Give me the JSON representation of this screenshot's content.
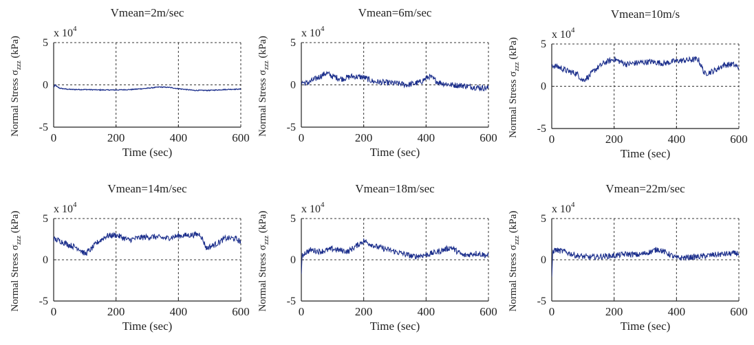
{
  "colors": {
    "series": "#1c2f8c",
    "axis": "#222222",
    "grid": "#333333"
  },
  "chart_data": [
    {
      "type": "line",
      "title": "Vmean=2m/sec",
      "xlabel": "Time (sec)",
      "ylabel_main": "Normal Stress σ",
      "ylabel_sub": "zzz",
      "ylabel_unit": " (kPa)",
      "scale_label": "x 10",
      "scale_exp": "4",
      "xlim": [
        0,
        600
      ],
      "ylim": [
        -5,
        5
      ],
      "xticks": [
        0,
        200,
        400,
        600
      ],
      "yticks": [
        -5,
        0,
        5
      ],
      "grid": true,
      "series": [
        {
          "x": [
            0,
            5,
            10,
            20,
            40,
            60,
            100,
            150,
            200,
            250,
            300,
            340,
            370,
            400,
            450,
            500,
            550,
            600
          ],
          "y": [
            -0.3,
            0.0,
            -0.2,
            -0.4,
            -0.5,
            -0.55,
            -0.55,
            -0.6,
            -0.6,
            -0.55,
            -0.4,
            -0.25,
            -0.3,
            -0.45,
            -0.65,
            -0.65,
            -0.55,
            -0.5
          ]
        }
      ]
    },
    {
      "type": "line",
      "title": "Vmean=6m/sec",
      "xlabel": "Time (sec)",
      "ylabel_main": "Normal Stress σ",
      "ylabel_sub": "zzz",
      "ylabel_unit": " (kPa)",
      "scale_label": "x 10",
      "scale_exp": "4",
      "xlim": [
        0,
        600
      ],
      "ylim": [
        -5,
        5
      ],
      "xticks": [
        0,
        200,
        400,
        600
      ],
      "yticks": [
        -5,
        0,
        5
      ],
      "grid": true,
      "series": [
        {
          "x": [
            0,
            20,
            50,
            80,
            100,
            130,
            160,
            200,
            230,
            260,
            300,
            340,
            380,
            410,
            440,
            480,
            520,
            560,
            600
          ],
          "y": [
            0.3,
            0.2,
            0.8,
            1.4,
            1.0,
            0.7,
            1.0,
            0.9,
            0.4,
            0.3,
            0.2,
            0.0,
            0.3,
            1.0,
            0.3,
            0.0,
            -0.1,
            -0.3,
            -0.4
          ]
        }
      ]
    },
    {
      "type": "line",
      "title": "Vmean=10m/s",
      "xlabel": "Time (sec)",
      "ylabel_main": "Normal Stress σ",
      "ylabel_sub": "zzz",
      "ylabel_unit": " (kPa)",
      "scale_label": "x 10",
      "scale_exp": "4",
      "xlim": [
        0,
        600
      ],
      "ylim": [
        -5,
        5
      ],
      "xticks": [
        0,
        200,
        400,
        600
      ],
      "yticks": [
        -5,
        0,
        5
      ],
      "grid": true,
      "series": [
        {
          "x": [
            0,
            20,
            50,
            80,
            100,
            120,
            140,
            170,
            200,
            240,
            280,
            320,
            360,
            400,
            440,
            470,
            490,
            520,
            550,
            580,
            600
          ],
          "y": [
            2.5,
            2.3,
            1.8,
            1.5,
            0.7,
            1.2,
            2.0,
            2.8,
            3.2,
            2.6,
            2.8,
            2.9,
            2.7,
            3.0,
            3.1,
            3.2,
            1.5,
            1.8,
            2.5,
            2.6,
            2.2
          ]
        }
      ]
    },
    {
      "type": "line",
      "title": "Vmean=14m/sec",
      "xlabel": "Time (sec)",
      "ylabel_main": "Normal Stress σ",
      "ylabel_sub": "zzz",
      "ylabel_unit": " (kPa)",
      "scale_label": "x 10",
      "scale_exp": "4",
      "xlim": [
        0,
        600
      ],
      "ylim": [
        -5,
        5
      ],
      "xticks": [
        0,
        200,
        400,
        600
      ],
      "yticks": [
        -5,
        0,
        5
      ],
      "grid": true,
      "series": [
        {
          "x": [
            0,
            20,
            50,
            80,
            100,
            120,
            140,
            170,
            200,
            240,
            280,
            320,
            360,
            400,
            440,
            470,
            490,
            520,
            550,
            580,
            600
          ],
          "y": [
            2.5,
            2.3,
            1.8,
            1.4,
            0.7,
            1.3,
            2.1,
            2.9,
            3.0,
            2.4,
            2.7,
            2.8,
            2.6,
            2.9,
            3.0,
            3.1,
            1.4,
            1.9,
            2.6,
            2.6,
            2.2
          ]
        }
      ]
    },
    {
      "type": "line",
      "title": "Vmean=18m/sec",
      "xlabel": "Time (sec)",
      "ylabel_main": "Normal Stress σ",
      "ylabel_sub": "zzz",
      "ylabel_unit": " (kPa)",
      "scale_label": "x 10",
      "scale_exp": "4",
      "xlim": [
        0,
        600
      ],
      "ylim": [
        -5,
        5
      ],
      "xticks": [
        0,
        200,
        400,
        600
      ],
      "yticks": [
        -5,
        0,
        5
      ],
      "grid": true,
      "series": [
        {
          "x": [
            0,
            3,
            10,
            30,
            60,
            100,
            150,
            200,
            240,
            280,
            320,
            360,
            400,
            440,
            480,
            520,
            560,
            600
          ],
          "y": [
            -1.8,
            0.5,
            0.8,
            1.2,
            1.0,
            1.3,
            1.0,
            2.3,
            1.6,
            1.2,
            0.8,
            0.4,
            0.6,
            1.0,
            1.5,
            0.5,
            0.8,
            0.5
          ]
        }
      ]
    },
    {
      "type": "line",
      "title": "Vmean=22m/sec",
      "xlabel": "Time (sec)",
      "ylabel_main": "Normal Stress σ",
      "ylabel_sub": "zzz",
      "ylabel_unit": " (kPa)",
      "scale_label": "x 10",
      "scale_exp": "4",
      "xlim": [
        0,
        600
      ],
      "ylim": [
        -5,
        5
      ],
      "xticks": [
        0,
        200,
        400,
        600
      ],
      "yticks": [
        -5,
        0,
        5
      ],
      "grid": true,
      "series": [
        {
          "x": [
            0,
            3,
            10,
            40,
            80,
            120,
            160,
            200,
            240,
            280,
            320,
            340,
            370,
            400,
            440,
            480,
            520,
            560,
            600
          ],
          "y": [
            -2.3,
            1.0,
            1.2,
            1.0,
            0.5,
            0.3,
            0.4,
            0.5,
            0.7,
            0.6,
            1.0,
            1.3,
            0.8,
            0.2,
            0.3,
            0.4,
            0.6,
            0.7,
            0.8
          ]
        }
      ]
    }
  ]
}
